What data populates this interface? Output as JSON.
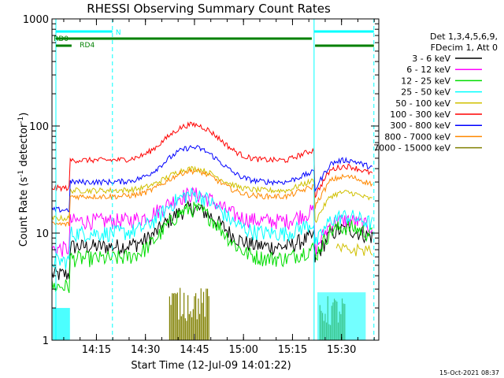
{
  "chart_data": {
    "type": "line",
    "title": "RHESSI Observing Summary Count Rates",
    "xlabel": "Start Time (12-Jul-09 14:01:22)",
    "ylabel_main": "Count Rate (s",
    "ylabel_sup1": "-1",
    "ylabel_mid": " detector",
    "ylabel_sup2": "-1",
    "ylabel_end": ")",
    "y_scale": "log",
    "ylim": [
      1,
      1000
    ],
    "xlim_minutes": [
      0,
      100
    ],
    "x_ticks": [
      {
        "label": "14:15",
        "minute": 13.6
      },
      {
        "label": "14:30",
        "minute": 28.6
      },
      {
        "label": "14:45",
        "minute": 43.6
      },
      {
        "label": "15:00",
        "minute": 58.6
      },
      {
        "label": "15:15",
        "minute": 73.6
      },
      {
        "label": "15:30",
        "minute": 88.6
      }
    ],
    "y_ticks": [
      {
        "label": "1",
        "value": 1
      },
      {
        "label": "10",
        "value": 10
      },
      {
        "label": "100",
        "value": 100
      },
      {
        "label": "1000",
        "value": 1000
      }
    ],
    "legend_header": [
      "Det 1,3,4,5,6,9,",
      "FDecim 1, Att 0"
    ],
    "legend_placement": "right",
    "series": [
      {
        "name": "3 - 6 keV",
        "color": "#000000",
        "base": 7.5,
        "bump": 9.5,
        "late": 9.0
      },
      {
        "name": "6 - 12 keV",
        "color": "#ff00ff",
        "base": 13,
        "bump": 10,
        "late": 11
      },
      {
        "name": "12 - 25 keV",
        "color": "#00dd00",
        "base": 5.8,
        "bump": 11,
        "late": 9.5
      },
      {
        "name": "25 - 50 keV",
        "color": "#00ffff",
        "base": 10,
        "bump": 13,
        "late": 12
      },
      {
        "name": "50 - 100 keV",
        "color": "#d0c000",
        "base": 25,
        "bump": 15,
        "late": 20
      },
      {
        "name": "100 - 300 keV",
        "color": "#ff0000",
        "base": 48,
        "bump": 55,
        "late": 35
      },
      {
        "name": "300 - 800 keV",
        "color": "#0000ff",
        "base": 30,
        "bump": 33,
        "late": 40
      },
      {
        "name": "800 - 7000 keV",
        "color": "#ff8800",
        "base": 22,
        "bump": 16,
        "late": 28
      },
      {
        "name": "7000 - 15000 keV",
        "color": "#808000",
        "base": 1.5,
        "bump": 0,
        "late": 1.5
      }
    ],
    "annotations": [
      {
        "text": "N",
        "color": "#00ffff"
      },
      {
        "text": "RD0",
        "color": "#008000"
      },
      {
        "text": "RD4",
        "color": "#008000"
      }
    ],
    "grid": false
  },
  "footer": {
    "timestamp": "15-Oct-2021 08:37"
  }
}
